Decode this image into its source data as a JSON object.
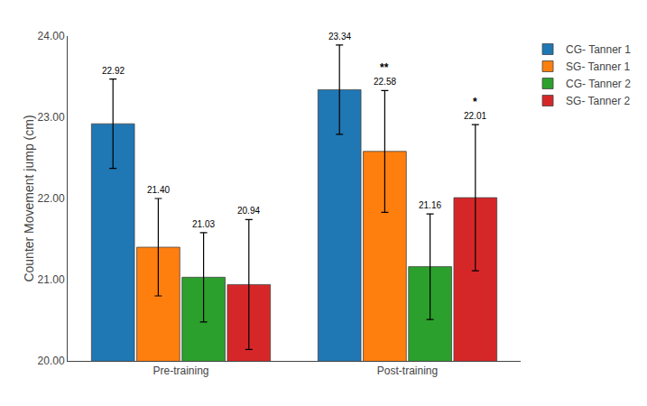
{
  "chart_data": {
    "type": "bar",
    "categories": [
      "Pre-training",
      "Post-training"
    ],
    "series": [
      {
        "name": "CG- Tanner 1",
        "values": [
          22.92,
          23.34
        ],
        "value_labels": [
          "22.92",
          "23.34"
        ],
        "errors": [
          0.55,
          0.55
        ]
      },
      {
        "name": "SG- Tanner 1",
        "values": [
          21.4,
          22.58
        ],
        "value_labels": [
          "21.40",
          "22.58"
        ],
        "errors": [
          0.6,
          0.75
        ],
        "significance": [
          null,
          "**"
        ]
      },
      {
        "name": "CG- Tanner 2",
        "values": [
          21.03,
          21.16
        ],
        "value_labels": [
          "21.03",
          "21.16"
        ],
        "errors": [
          0.55,
          0.65
        ]
      },
      {
        "name": "SG- Tanner 2",
        "values": [
          20.94,
          22.01
        ],
        "value_labels": [
          "20.94",
          "22.01"
        ],
        "errors": [
          0.8,
          0.9
        ],
        "significance": [
          null,
          "*"
        ]
      }
    ],
    "ylabel": "Counter Movement jump (cm)",
    "ylim": [
      20.0,
      24.0
    ],
    "yticks": [
      {
        "value": 20.0,
        "label": "20.00"
      },
      {
        "value": 21.0,
        "label": "21.00"
      },
      {
        "value": 22.0,
        "label": "22.00"
      },
      {
        "value": 23.0,
        "label": "23.00"
      },
      {
        "value": 24.0,
        "label": "24.00"
      }
    ],
    "grid": false,
    "legend": "right",
    "data_labels": true
  }
}
